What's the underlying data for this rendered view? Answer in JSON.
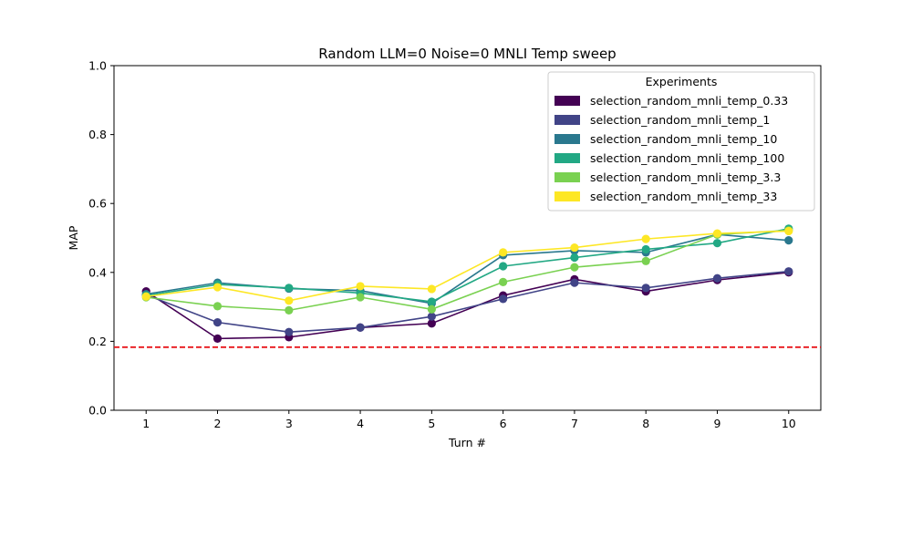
{
  "chart_data": {
    "type": "line",
    "title": "Random LLM=0 Noise=0 MNLI Temp sweep",
    "xlabel": "Turn #",
    "ylabel": "MAP",
    "x": [
      1,
      2,
      3,
      4,
      5,
      6,
      7,
      8,
      9,
      10
    ],
    "xticks": [
      "1",
      "2",
      "3",
      "4",
      "5",
      "6",
      "7",
      "8",
      "9",
      "10"
    ],
    "ylim": [
      0,
      1
    ],
    "yticks": [
      "0.0",
      "0.2",
      "0.4",
      "0.6",
      "0.8",
      "1.0"
    ],
    "grid": false,
    "legend": {
      "title": "Experiments",
      "placement": "top-right"
    },
    "baseline": {
      "y": 0.183,
      "color": "#e8161b",
      "style": "dashed"
    },
    "series": [
      {
        "name": "selection_random_mnli_temp_0.33",
        "color": "#440154",
        "values": [
          0.345,
          0.208,
          0.212,
          0.24,
          0.252,
          0.333,
          0.38,
          0.345,
          0.378,
          0.4
        ]
      },
      {
        "name": "selection_random_mnli_temp_1",
        "color": "#414487",
        "values": [
          0.335,
          0.255,
          0.227,
          0.24,
          0.272,
          0.323,
          0.37,
          0.355,
          0.383,
          0.403
        ]
      },
      {
        "name": "selection_random_mnli_temp_10",
        "color": "#2a788e",
        "values": [
          0.337,
          0.37,
          0.353,
          0.347,
          0.31,
          0.45,
          0.463,
          0.458,
          0.51,
          0.493
        ]
      },
      {
        "name": "selection_random_mnli_temp_100",
        "color": "#22a884",
        "values": [
          0.333,
          0.365,
          0.355,
          0.34,
          0.315,
          0.418,
          0.443,
          0.467,
          0.485,
          0.527
        ]
      },
      {
        "name": "selection_random_mnli_temp_3.3",
        "color": "#7ad151",
        "values": [
          0.328,
          0.302,
          0.29,
          0.328,
          0.293,
          0.372,
          0.415,
          0.433,
          0.51,
          0.522
        ]
      },
      {
        "name": "selection_random_mnli_temp_33",
        "color": "#fde725",
        "values": [
          0.33,
          0.357,
          0.318,
          0.36,
          0.352,
          0.458,
          0.472,
          0.497,
          0.513,
          0.52
        ]
      }
    ]
  }
}
